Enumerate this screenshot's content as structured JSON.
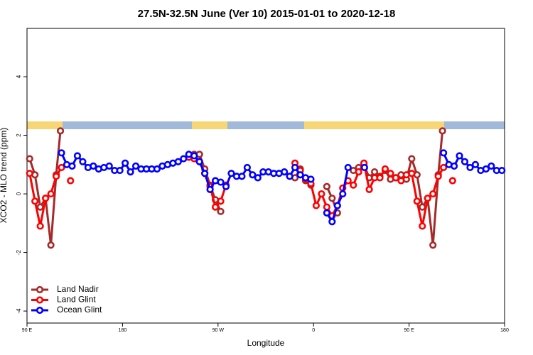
{
  "chart_data": {
    "type": "line",
    "title": "27.5N-32.5N June (Ver 10)   2015-01-01 to 2020-12-18",
    "x_label": "Longitude",
    "y_label": "XCO2 - MLO trend (ppm)",
    "xlim": [
      90,
      540
    ],
    "xticks": [
      {
        "value": 90,
        "label": "90 E"
      },
      {
        "value": 180,
        "label": "180"
      },
      {
        "value": 270,
        "label": "90 W"
      },
      {
        "value": 360,
        "label": "0"
      },
      {
        "value": 450,
        "label": "90 E"
      },
      {
        "value": 540,
        "label": "180"
      }
    ],
    "ylim": [
      -4.41,
      5.65
    ],
    "yticks": [
      -4,
      -2,
      0,
      2,
      4
    ],
    "legend": "lower left",
    "series": [
      {
        "name": "Land Nadir",
        "color": "#a52a2a",
        "x": [
          92.5,
          97.5,
          102.5,
          107.5,
          112.5,
          117.5,
          121.5,
          125,
          247.5,
          252.5,
          257.5,
          262.5,
          267.5,
          272.5,
          300,
          342.5,
          347.5,
          352.5,
          357.5,
          365,
          372.5,
          377.5,
          382.5,
          390,
          397.5,
          402.5,
          407.5,
          412.5,
          417.5,
          422.5,
          427.5,
          432.5,
          437.5,
          442.5,
          447.5,
          452.5,
          457.5,
          462.5,
          467.5,
          472.5,
          477.5,
          481.5
        ],
        "values": [
          1.2,
          0.65,
          -0.45,
          -0.15,
          -1.75,
          0.65,
          2.15,
          null,
          1.35,
          1.35,
          0.85,
          0.3,
          -0.2,
          -0.6,
          null,
          0.55,
          0.85,
          0.45,
          0.3,
          null,
          0.25,
          -0.15,
          -0.65,
          null,
          0.8,
          0.9,
          1.0,
          0.55,
          0.75,
          0.6,
          0.8,
          0.5,
          0.55,
          0.65,
          0.5,
          1.2,
          0.65,
          -0.45,
          -0.15,
          -1.75,
          0.65,
          2.15
        ]
      },
      {
        "name": "Land Glint",
        "color": "#ff0000",
        "x": [
          92.5,
          97.5,
          102.5,
          107.5,
          112.5,
          117.5,
          122.5,
          127,
          131,
          200,
          242.5,
          247.5,
          252.5,
          257.5,
          262.5,
          267.5,
          272.5,
          277.5,
          300,
          342.5,
          347.5,
          352.5,
          357.5,
          362.5,
          367.5,
          372.5,
          377.5,
          382.5,
          387.5,
          392.5,
          397.5,
          402.5,
          407.5,
          412.5,
          417.5,
          422.5,
          427.5,
          432.5,
          437.5,
          442.5,
          447.5,
          452.5,
          457.5,
          462.5,
          467.5,
          472.5,
          477.5,
          482.5,
          487,
          491
        ],
        "values": [
          0.7,
          -0.25,
          -1.1,
          -0.15,
          0.0,
          0.6,
          0.9,
          null,
          0.45,
          null,
          1.25,
          1.2,
          1.1,
          0.7,
          0.25,
          -0.45,
          -0.25,
          0.3,
          null,
          1.05,
          0.8,
          0.5,
          0.35,
          -0.4,
          0.0,
          -0.45,
          -0.75,
          -0.4,
          0.2,
          0.45,
          0.3,
          0.75,
          1.05,
          0.15,
          0.55,
          0.55,
          0.85,
          0.7,
          0.55,
          0.45,
          0.65,
          0.7,
          -0.25,
          -1.1,
          -0.15,
          0.0,
          0.6,
          0.9,
          null,
          0.45
        ]
      },
      {
        "name": "Ocean Glint",
        "color": "#0000ff",
        "x": [
          122.5,
          127.5,
          132.5,
          137.5,
          142.5,
          147.5,
          152.5,
          157.5,
          162.5,
          167.5,
          172.5,
          177.5,
          182.5,
          187.5,
          192.5,
          197.5,
          202.5,
          207.5,
          212.5,
          217.5,
          222.5,
          227.5,
          232.5,
          237.5,
          242.5,
          247.5,
          252.5,
          257.5,
          262.5,
          267.5,
          272.5,
          277.5,
          282.5,
          287.5,
          292.5,
          297.5,
          302.5,
          307.5,
          312.5,
          317.5,
          322.5,
          327.5,
          332.5,
          337.5,
          342.5,
          347.5,
          352.5,
          357.5,
          365,
          372.5,
          377.5,
          382.5,
          387.5,
          392.5,
          400,
          408,
          450,
          482.5,
          487.5,
          492.5,
          497.5,
          502.5,
          507.5,
          512.5,
          517.5,
          522.5,
          527.5,
          532.5,
          537.5
        ],
        "values": [
          1.4,
          1.0,
          0.95,
          1.3,
          1.1,
          0.9,
          0.95,
          0.85,
          0.9,
          0.95,
          0.8,
          0.8,
          1.05,
          0.75,
          0.95,
          0.85,
          0.85,
          0.85,
          0.85,
          0.95,
          1.0,
          1.05,
          1.1,
          1.2,
          1.35,
          1.3,
          1.1,
          0.7,
          0.15,
          0.45,
          0.4,
          0.25,
          0.7,
          0.6,
          0.6,
          0.9,
          0.65,
          0.55,
          0.75,
          0.75,
          0.7,
          0.7,
          0.75,
          0.6,
          0.9,
          0.65,
          0.55,
          0.5,
          null,
          -0.65,
          -0.95,
          -0.4,
          0.0,
          0.9,
          null,
          0.9,
          null,
          1.4,
          1.0,
          0.95,
          1.3,
          1.1,
          0.9,
          1.0,
          0.8,
          0.85,
          0.95,
          0.8,
          0.8
        ]
      }
    ]
  }
}
